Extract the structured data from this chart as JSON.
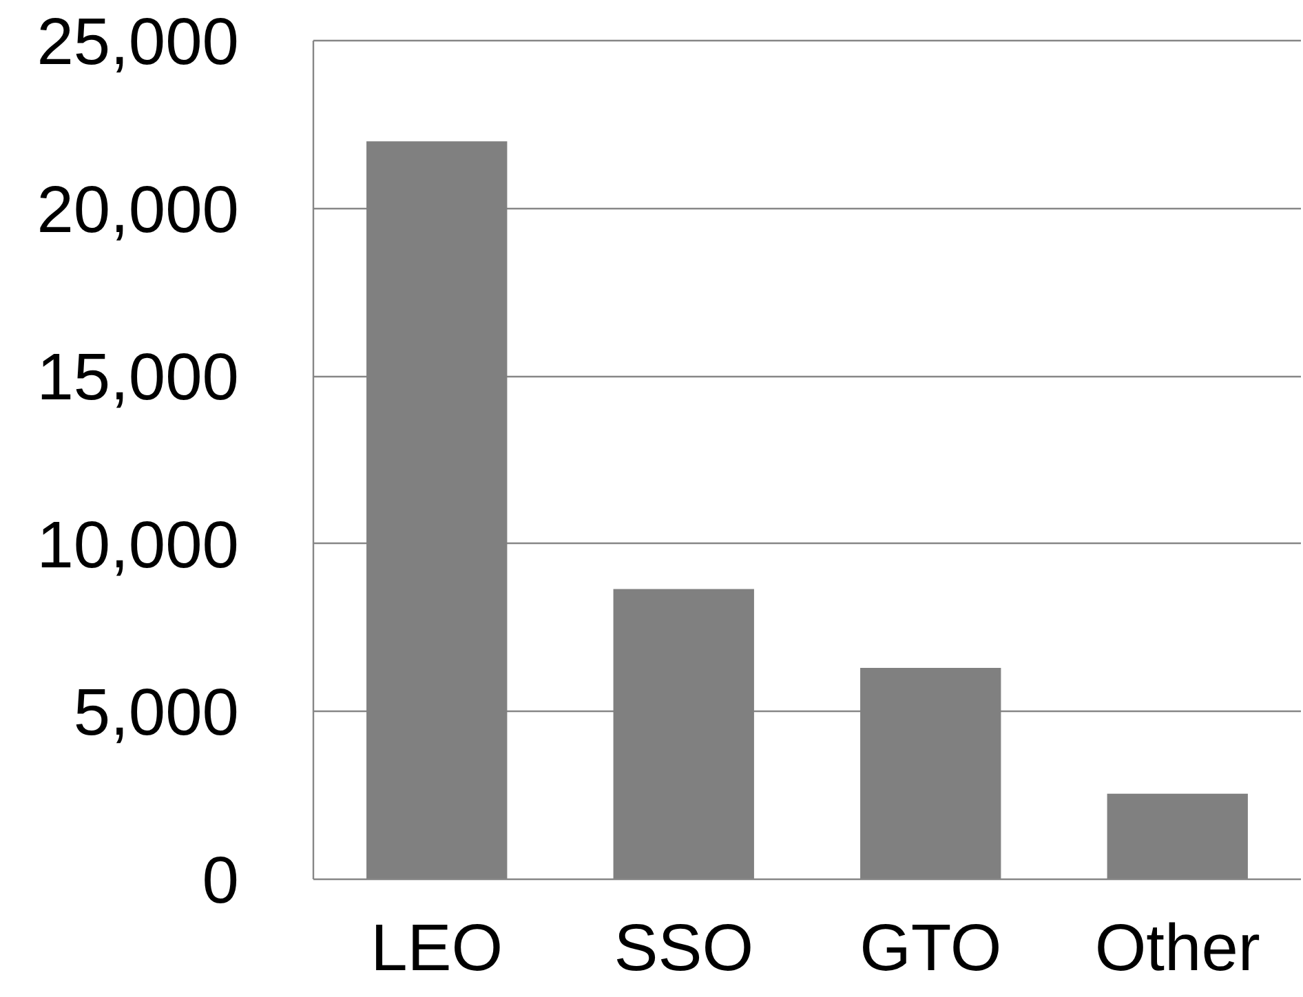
{
  "chart_data": {
    "type": "bar",
    "categories": [
      "LEO",
      "SSO",
      "GTO",
      "Other"
    ],
    "series": [
      {
        "color": "#808080",
        "values": [
          22000,
          8650,
          6300,
          2550
        ]
      }
    ],
    "ylim": [
      0,
      25000
    ],
    "yticks": [
      {
        "value": 0,
        "label": "0"
      },
      {
        "value": 5000,
        "label": "5,000"
      },
      {
        "value": 10000,
        "label": "10,000"
      },
      {
        "value": 15000,
        "label": "15,000"
      },
      {
        "value": 20000,
        "label": "20,000"
      },
      {
        "value": 25000,
        "label": "25,000"
      }
    ],
    "grid": "y"
  }
}
